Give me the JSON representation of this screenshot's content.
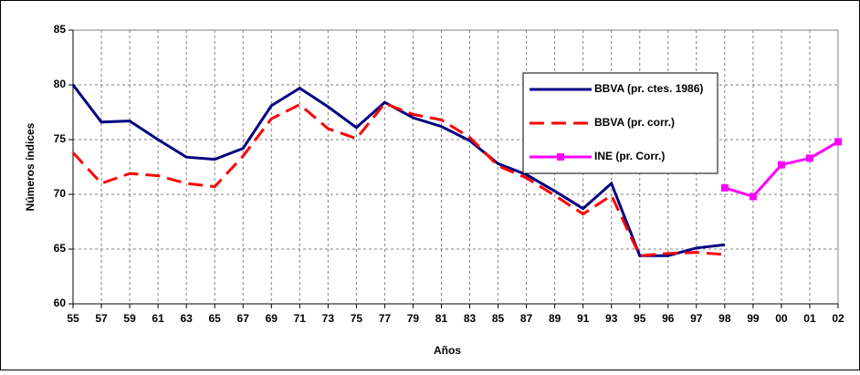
{
  "chart_data": {
    "type": "line",
    "x_label": "Años",
    "y_label": "Números índices",
    "categories": [
      "55",
      "57",
      "59",
      "61",
      "63",
      "65",
      "67",
      "69",
      "71",
      "73",
      "75",
      "77",
      "79",
      "81",
      "83",
      "85",
      "87",
      "89",
      "91",
      "93",
      "95",
      "96",
      "97",
      "98",
      "99",
      "00",
      "01",
      "02"
    ],
    "series": [
      {
        "name": "BBVA (pr. ctes. 1986)",
        "color": "#000080",
        "style": "solid",
        "values": [
          80,
          76.6,
          76.7,
          75.0,
          73.4,
          73.2,
          74.2,
          78.1,
          79.7,
          78.0,
          76.1,
          78.4,
          77.0,
          76.2,
          74.9,
          72.8,
          71.8,
          70.3,
          68.7,
          71.0,
          64.4,
          64.4,
          65.1,
          65.4,
          null,
          null,
          null,
          null
        ]
      },
      {
        "name": "BBVA (pr. corr.)",
        "color": "#ff0000",
        "style": "dashed",
        "values": [
          73.8,
          71.0,
          71.9,
          71.7,
          71.0,
          70.7,
          73.5,
          76.9,
          78.2,
          76.0,
          75.1,
          78.3,
          77.3,
          76.8,
          75.2,
          72.6,
          71.5,
          69.9,
          68.2,
          69.9,
          64.4,
          64.6,
          64.7,
          64.5,
          null,
          null,
          null,
          null
        ]
      },
      {
        "name": "INE (pr. Corr.)",
        "color": "#ff00ff",
        "style": "markers",
        "values": [
          null,
          null,
          null,
          null,
          null,
          null,
          null,
          null,
          null,
          null,
          null,
          null,
          null,
          null,
          null,
          null,
          null,
          null,
          null,
          null,
          null,
          null,
          null,
          70.6,
          69.8,
          72.7,
          73.3,
          74.8
        ]
      }
    ],
    "ylim": [
      60,
      85
    ],
    "yticks": [
      60,
      65,
      70,
      75,
      80,
      85
    ],
    "grid": true,
    "legend": "upper right"
  }
}
